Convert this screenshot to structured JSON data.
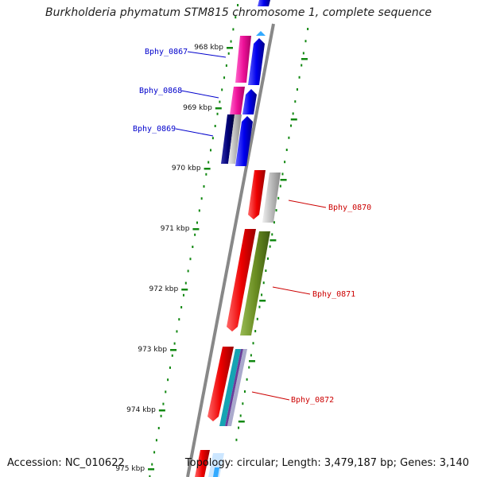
{
  "title": "Burkholderia phymatum STM815 chromosome 1, complete sequence",
  "accession": "Accession: NC_010622",
  "topology": "Topology: circular; Length: 3,479,187 bp; Genes: 3,140",
  "kbp_labels": [
    "968 kbp",
    "969 kbp",
    "970 kbp",
    "971 kbp",
    "972 kbp",
    "973 kbp",
    "974 kbp",
    "975 kbp"
  ],
  "genes_left": [
    "Bphy_0867",
    "Bphy_0868",
    "Bphy_0869"
  ],
  "genes_right": [
    "Bphy_0870",
    "Bphy_0871",
    "Bphy_0872"
  ],
  "colors": {
    "left_label": "#0000cc",
    "right_label": "#cc0000",
    "tick": "#118811",
    "backbone": "#888888"
  }
}
